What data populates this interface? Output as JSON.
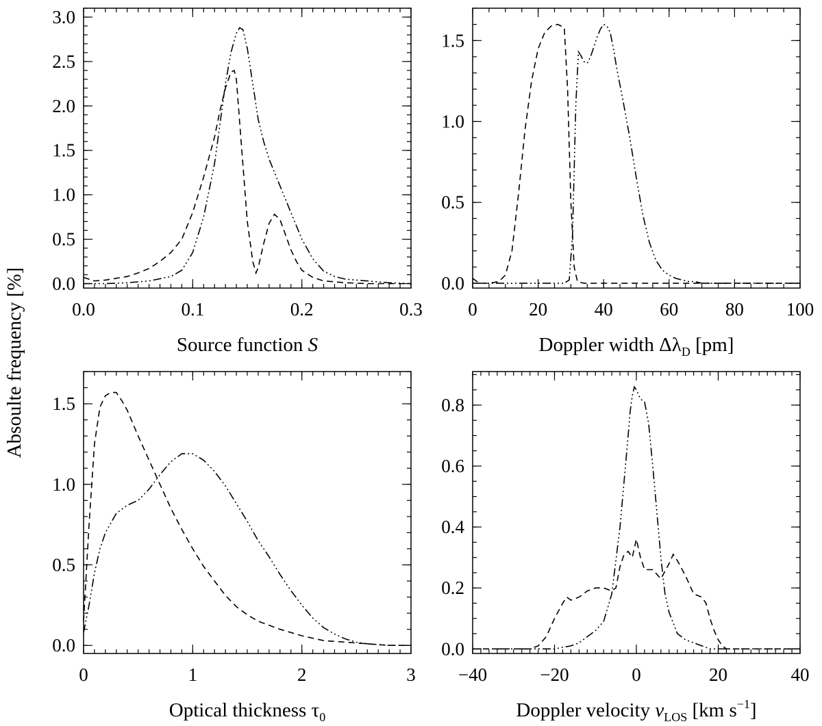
{
  "figure": {
    "ylabel": "Absoulte frequency   [%]"
  },
  "chart_data": [
    {
      "type": "line",
      "id": "source",
      "xlim": [
        0,
        0.3
      ],
      "ylim": [
        -0.05,
        3.1
      ],
      "xticks": [
        0.0,
        0.1,
        0.2,
        0.3
      ],
      "xtick_labels": [
        "0.0",
        "0.1",
        "0.2",
        "0.3"
      ],
      "yticks": [
        0.0,
        0.5,
        1.0,
        1.5,
        2.0,
        2.5,
        3.0
      ],
      "ytick_labels": [
        "0.0",
        "0.5",
        "1.0",
        "1.5",
        "2.0",
        "2.5",
        "3.0"
      ],
      "xminor": 0.01,
      "yminor": 0.1,
      "xlabel": {
        "main": "Source function  ",
        "sym": "S",
        "sub": "",
        "sup": "",
        "tail": ""
      },
      "series": [
        {
          "name": "dashed",
          "style": "dashed",
          "x": [
            0.0,
            0.01,
            0.02,
            0.03,
            0.04,
            0.05,
            0.06,
            0.07,
            0.08,
            0.09,
            0.1,
            0.11,
            0.12,
            0.125,
            0.13,
            0.135,
            0.138,
            0.14,
            0.145,
            0.15,
            0.155,
            0.158,
            0.16,
            0.165,
            0.17,
            0.175,
            0.18,
            0.185,
            0.19,
            0.195,
            0.2,
            0.21,
            0.22,
            0.24,
            0.26,
            0.28,
            0.3
          ],
          "y": [
            0.07,
            0.03,
            0.04,
            0.06,
            0.08,
            0.12,
            0.17,
            0.25,
            0.35,
            0.5,
            0.8,
            1.2,
            1.65,
            1.95,
            2.2,
            2.38,
            2.4,
            2.3,
            1.5,
            0.7,
            0.25,
            0.12,
            0.18,
            0.45,
            0.68,
            0.78,
            0.72,
            0.55,
            0.38,
            0.25,
            0.15,
            0.07,
            0.03,
            0.01,
            0.0,
            0.0,
            0.0
          ]
        },
        {
          "name": "dash-dot-dot",
          "style": "dashdot",
          "x": [
            0.0,
            0.02,
            0.04,
            0.06,
            0.08,
            0.09,
            0.1,
            0.11,
            0.12,
            0.125,
            0.13,
            0.135,
            0.14,
            0.143,
            0.146,
            0.15,
            0.155,
            0.16,
            0.165,
            0.17,
            0.175,
            0.18,
            0.19,
            0.2,
            0.21,
            0.22,
            0.23,
            0.24,
            0.26,
            0.28,
            0.3
          ],
          "y": [
            0.0,
            0.0,
            0.01,
            0.03,
            0.08,
            0.15,
            0.35,
            0.75,
            1.35,
            1.8,
            2.25,
            2.6,
            2.82,
            2.88,
            2.86,
            2.65,
            2.25,
            1.85,
            1.6,
            1.4,
            1.25,
            1.1,
            0.8,
            0.5,
            0.28,
            0.14,
            0.08,
            0.05,
            0.03,
            0.01,
            0.0
          ]
        }
      ]
    },
    {
      "type": "line",
      "id": "doppler-width",
      "xlim": [
        0,
        100
      ],
      "ylim": [
        -0.03,
        1.7
      ],
      "xticks": [
        0,
        20,
        40,
        60,
        80,
        100
      ],
      "xtick_labels": [
        "0",
        "20",
        "40",
        "60",
        "80",
        "100"
      ],
      "yticks": [
        0.0,
        0.5,
        1.0,
        1.5
      ],
      "ytick_labels": [
        "0.0",
        "0.5",
        "1.0",
        "1.5"
      ],
      "xminor": 5,
      "yminor": 0.1,
      "xlabel": {
        "main": "Doppler width  Δλ",
        "sym": "",
        "sub": "D",
        "sup": "",
        "tail": "  [pm]"
      },
      "series": [
        {
          "name": "dashed",
          "style": "dashed",
          "x": [
            0,
            2,
            5,
            8,
            10,
            12,
            14,
            16,
            18,
            20,
            22,
            24,
            26,
            28,
            29,
            30,
            31,
            32,
            34,
            40,
            60,
            80,
            100
          ],
          "y": [
            0.03,
            0.0,
            0.0,
            0.01,
            0.05,
            0.2,
            0.55,
            0.95,
            1.25,
            1.45,
            1.55,
            1.59,
            1.6,
            1.58,
            1.2,
            0.5,
            0.1,
            0.01,
            0.0,
            0.0,
            0.0,
            0.0,
            0.0
          ]
        },
        {
          "name": "dash-dot-dot",
          "style": "dashdot",
          "x": [
            0,
            28,
            29.5,
            30.5,
            31.5,
            32.3,
            33,
            34,
            35,
            36,
            37,
            38,
            39,
            40,
            41,
            42,
            43,
            44,
            46,
            48,
            50,
            52,
            54,
            56,
            58,
            60,
            62,
            64,
            66,
            68,
            70,
            80,
            100
          ],
          "y": [
            0.0,
            0.0,
            0.02,
            0.3,
            1.1,
            1.43,
            1.41,
            1.37,
            1.36,
            1.4,
            1.46,
            1.52,
            1.57,
            1.6,
            1.59,
            1.55,
            1.45,
            1.33,
            1.12,
            0.9,
            0.65,
            0.42,
            0.25,
            0.14,
            0.08,
            0.05,
            0.03,
            0.02,
            0.01,
            0.01,
            0.0,
            0.0,
            0.0
          ]
        }
      ]
    },
    {
      "type": "line",
      "id": "optical-thickness",
      "xlim": [
        0,
        3
      ],
      "ylim": [
        -0.05,
        1.7
      ],
      "xticks": [
        0,
        1,
        2,
        3
      ],
      "xtick_labels": [
        "0",
        "1",
        "2",
        "3"
      ],
      "yticks": [
        0.0,
        0.5,
        1.0,
        1.5
      ],
      "ytick_labels": [
        "0.0",
        "0.5",
        "1.0",
        "1.5"
      ],
      "xminor": 0.1,
      "yminor": 0.1,
      "xlabel": {
        "main": "Optical thickness  τ",
        "sym": "",
        "sub": "0",
        "sup": "",
        "tail": ""
      },
      "series": [
        {
          "name": "dashed",
          "style": "dashed",
          "x": [
            0.0,
            0.05,
            0.1,
            0.15,
            0.2,
            0.25,
            0.3,
            0.35,
            0.4,
            0.5,
            0.6,
            0.7,
            0.8,
            0.9,
            1.0,
            1.1,
            1.2,
            1.3,
            1.4,
            1.5,
            1.6,
            1.8,
            2.0,
            2.2,
            2.4,
            2.6,
            2.8,
            3.0
          ],
          "y": [
            0.15,
            0.75,
            1.25,
            1.48,
            1.55,
            1.57,
            1.57,
            1.52,
            1.46,
            1.3,
            1.15,
            1.0,
            0.85,
            0.72,
            0.6,
            0.49,
            0.4,
            0.31,
            0.24,
            0.19,
            0.15,
            0.1,
            0.06,
            0.03,
            0.02,
            0.01,
            0.0,
            0.0
          ]
        },
        {
          "name": "dash-dot-dot",
          "style": "dashdot",
          "x": [
            0.0,
            0.05,
            0.1,
            0.15,
            0.2,
            0.3,
            0.4,
            0.5,
            0.6,
            0.7,
            0.8,
            0.9,
            1.0,
            1.1,
            1.2,
            1.3,
            1.4,
            1.5,
            1.6,
            1.7,
            1.8,
            1.9,
            2.0,
            2.1,
            2.2,
            2.3,
            2.4,
            2.5,
            2.6,
            2.8,
            3.0
          ],
          "y": [
            0.08,
            0.25,
            0.45,
            0.6,
            0.7,
            0.82,
            0.87,
            0.9,
            0.97,
            1.06,
            1.14,
            1.19,
            1.19,
            1.15,
            1.08,
            0.99,
            0.88,
            0.77,
            0.65,
            0.55,
            0.44,
            0.34,
            0.25,
            0.17,
            0.11,
            0.07,
            0.04,
            0.02,
            0.01,
            0.0,
            0.0
          ]
        }
      ]
    },
    {
      "type": "line",
      "id": "doppler-velocity",
      "xlim": [
        -40,
        40
      ],
      "ylim": [
        -0.015,
        0.91
      ],
      "xticks": [
        -40,
        -20,
        0,
        20,
        40
      ],
      "xtick_labels": [
        "−40",
        "−20",
        "0",
        "20",
        "40"
      ],
      "yticks": [
        0.0,
        0.2,
        0.4,
        0.6,
        0.8
      ],
      "ytick_labels": [
        "0.0",
        "0.2",
        "0.4",
        "0.6",
        "0.8"
      ],
      "xminor": 2,
      "yminor": 0.05,
      "xlabel": {
        "main": "Doppler velocity  ",
        "sym": "v",
        "sub": "LOS",
        "sup": "−1",
        "tail": "  [km s"
      },
      "series": [
        {
          "name": "dashed",
          "style": "dashed",
          "x": [
            -40,
            -26,
            -24,
            -22,
            -20,
            -18,
            -17,
            -16,
            -14,
            -12,
            -10,
            -8,
            -6,
            -5,
            -4,
            -3,
            -2,
            -1,
            0,
            1,
            2,
            4,
            6,
            8,
            9,
            10,
            12,
            14,
            16,
            17,
            18,
            19,
            20,
            21,
            22,
            24,
            40
          ],
          "y": [
            0.0,
            0.0,
            0.01,
            0.04,
            0.1,
            0.15,
            0.17,
            0.16,
            0.17,
            0.19,
            0.2,
            0.2,
            0.19,
            0.2,
            0.27,
            0.31,
            0.32,
            0.3,
            0.36,
            0.3,
            0.26,
            0.26,
            0.23,
            0.28,
            0.31,
            0.29,
            0.24,
            0.18,
            0.17,
            0.15,
            0.1,
            0.06,
            0.03,
            0.01,
            0.0,
            0.0,
            0.0
          ]
        },
        {
          "name": "dash-dot-dot",
          "style": "dashdot",
          "x": [
            -40,
            -30,
            -25,
            -20,
            -16,
            -14,
            -12,
            -10,
            -8,
            -6,
            -4,
            -3,
            -2,
            -1.5,
            -1,
            -0.5,
            0,
            1,
            2,
            3,
            4,
            5,
            6,
            7,
            8,
            10,
            12,
            14,
            16,
            18,
            20,
            25,
            30,
            40
          ],
          "y": [
            0.0,
            0.0,
            0.0,
            0.0,
            0.01,
            0.02,
            0.04,
            0.06,
            0.09,
            0.18,
            0.4,
            0.55,
            0.7,
            0.78,
            0.83,
            0.86,
            0.85,
            0.82,
            0.81,
            0.74,
            0.6,
            0.45,
            0.3,
            0.18,
            0.12,
            0.05,
            0.03,
            0.02,
            0.01,
            0.0,
            0.0,
            0.0,
            0.0,
            0.0
          ]
        }
      ]
    }
  ]
}
